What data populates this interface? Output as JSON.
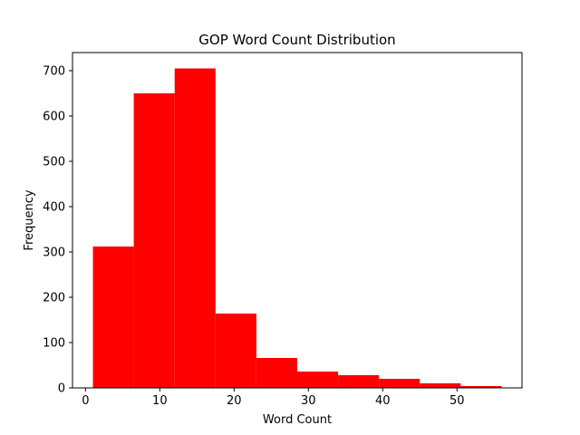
{
  "chart_data": {
    "type": "bar",
    "title": "GOP Word Count Distribution",
    "xlabel": "Word Count",
    "ylabel": "Frequency",
    "bins": [
      {
        "start": 1.0,
        "end": 6.5,
        "value": 312
      },
      {
        "start": 6.5,
        "end": 12.0,
        "value": 650
      },
      {
        "start": 12.0,
        "end": 17.5,
        "value": 705
      },
      {
        "start": 17.5,
        "end": 23.0,
        "value": 164
      },
      {
        "start": 23.0,
        "end": 28.5,
        "value": 66
      },
      {
        "start": 28.5,
        "end": 34.0,
        "value": 36
      },
      {
        "start": 34.0,
        "end": 39.5,
        "value": 28
      },
      {
        "start": 39.5,
        "end": 45.0,
        "value": 20
      },
      {
        "start": 45.0,
        "end": 50.5,
        "value": 10
      },
      {
        "start": 50.5,
        "end": 56.0,
        "value": 4
      }
    ],
    "xlim": [
      -1.75,
      58.75
    ],
    "ylim": [
      0,
      740
    ],
    "xticks": [
      0,
      10,
      20,
      30,
      40,
      50
    ],
    "yticks": [
      0,
      100,
      200,
      300,
      400,
      500,
      600,
      700
    ],
    "bar_color": "#ff0000",
    "grid": false
  }
}
